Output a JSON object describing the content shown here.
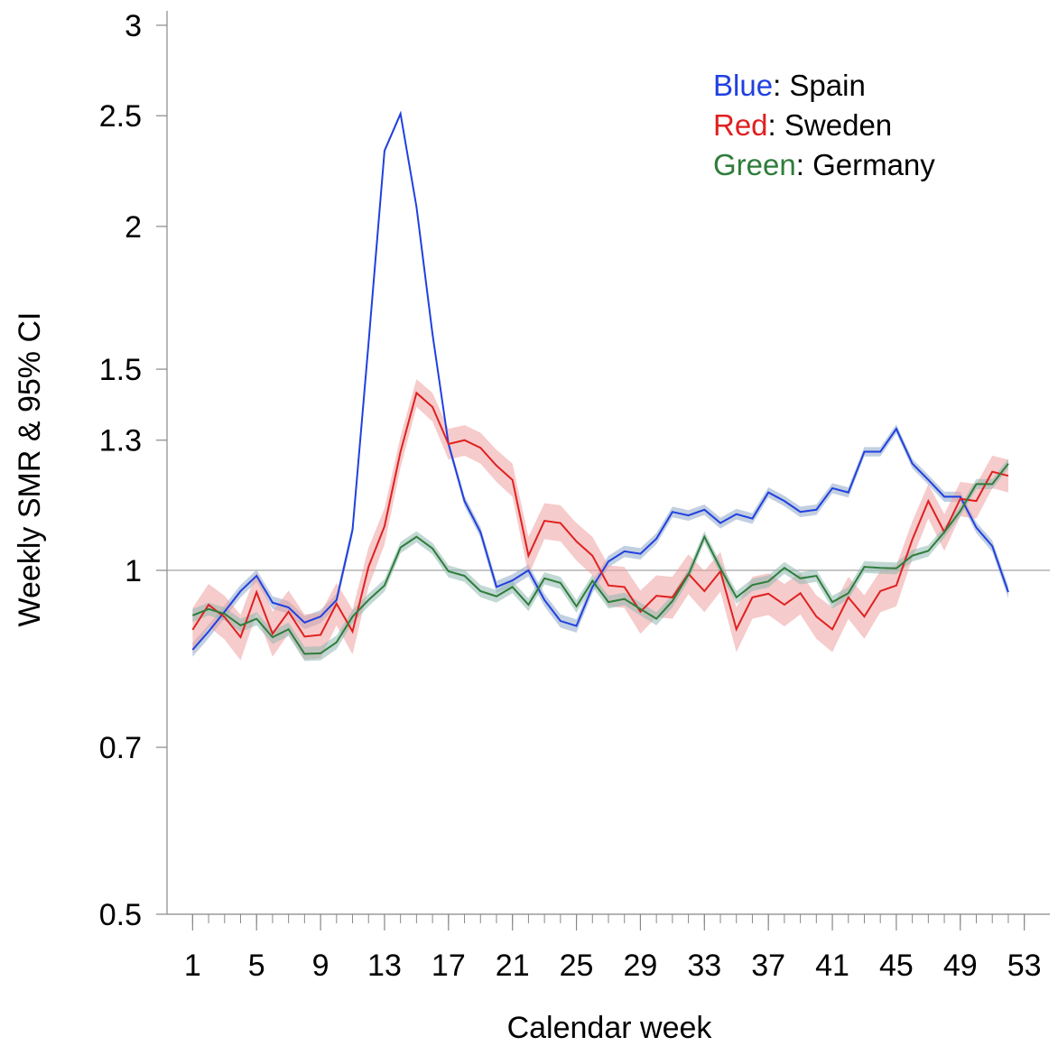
{
  "chart_data": {
    "type": "line",
    "x_label": "Calendar week",
    "y_label": "Weekly SMR & 95% CI",
    "log_y": true,
    "ylim": [
      0.5,
      3
    ],
    "yticks": [
      0.5,
      0.7,
      1,
      1.3,
      1.5,
      2,
      2.5,
      3
    ],
    "xlim": [
      -0.6,
      54.6
    ],
    "xticks": [
      1,
      5,
      9,
      13,
      17,
      21,
      25,
      29,
      33,
      37,
      41,
      45,
      49,
      53
    ],
    "x_minor_step": 1,
    "hline": 1,
    "legend_position": "upper right",
    "legend_separator": ": ",
    "x": [
      1,
      2,
      3,
      4,
      5,
      6,
      7,
      8,
      9,
      10,
      11,
      12,
      13,
      14,
      15,
      16,
      17,
      18,
      19,
      20,
      21,
      22,
      23,
      24,
      25,
      26,
      27,
      28,
      29,
      30,
      31,
      32,
      33,
      34,
      35,
      36,
      37,
      38,
      39,
      40,
      41,
      42,
      43,
      44,
      45,
      46,
      47,
      48,
      49,
      50,
      51,
      52
    ],
    "series": [
      {
        "name": "Spain",
        "color_name": "Blue",
        "color": "#2040e0",
        "band_color": "#8fa8c8",
        "ci_halfwidth": 0.012,
        "values": [
          0.852,
          0.884,
          0.92,
          0.959,
          0.989,
          0.937,
          0.928,
          0.9,
          0.911,
          0.942,
          1.085,
          1.58,
          2.33,
          2.51,
          2.08,
          1.61,
          1.29,
          1.15,
          1.08,
          0.967,
          0.98,
          1.0,
          0.942,
          0.903,
          0.894,
          0.967,
          1.018,
          1.039,
          1.034,
          1.066,
          1.125,
          1.117,
          1.13,
          1.1,
          1.12,
          1.11,
          1.17,
          1.15,
          1.125,
          1.13,
          1.18,
          1.17,
          1.27,
          1.27,
          1.33,
          1.24,
          1.2,
          1.16,
          1.16,
          1.09,
          1.05,
          0.957
        ]
      },
      {
        "name": "Sweden",
        "color_name": "Red",
        "color": "#e02020",
        "band_color": "#eea0a0",
        "ci_halfwidth": 0.04,
        "values": [
          0.887,
          0.933,
          0.91,
          0.874,
          0.957,
          0.88,
          0.92,
          0.875,
          0.878,
          0.935,
          0.884,
          1.007,
          1.093,
          1.27,
          1.43,
          1.39,
          1.29,
          1.3,
          1.28,
          1.235,
          1.2,
          1.03,
          1.105,
          1.1,
          1.06,
          1.03,
          0.97,
          0.967,
          0.92,
          0.95,
          0.947,
          0.993,
          0.959,
          0.998,
          0.888,
          0.947,
          0.954,
          0.933,
          0.955,
          0.911,
          0.888,
          0.947,
          0.911,
          0.959,
          0.97,
          1.064,
          1.15,
          1.08,
          1.155,
          1.15,
          1.22,
          1.21
        ]
      },
      {
        "name": "Germany",
        "color_name": "Green",
        "color": "#2e7d3a",
        "band_color": "#8fb8b0",
        "ci_halfwidth": 0.012,
        "values": [
          0.913,
          0.925,
          0.916,
          0.895,
          0.907,
          0.874,
          0.888,
          0.845,
          0.846,
          0.865,
          0.911,
          0.942,
          0.97,
          1.047,
          1.07,
          1.045,
          0.998,
          0.989,
          0.959,
          0.949,
          0.967,
          0.933,
          0.984,
          0.975,
          0.93,
          0.979,
          0.938,
          0.944,
          0.925,
          0.907,
          0.94,
          0.991,
          1.07,
          1.004,
          0.947,
          0.971,
          0.978,
          1.005,
          0.984,
          0.989,
          0.938,
          0.955,
          1.007,
          1.005,
          1.004,
          1.03,
          1.04,
          1.08,
          1.127,
          1.19,
          1.19,
          1.24
        ]
      }
    ]
  }
}
